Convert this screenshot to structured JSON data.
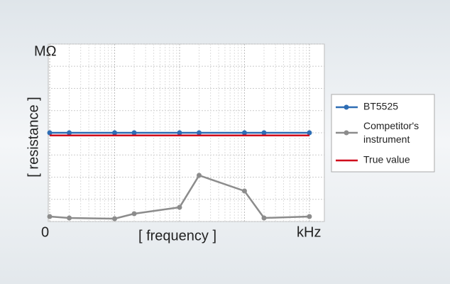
{
  "chart_data": {
    "type": "line",
    "x_label": "[ frequency ]",
    "y_label": "[ resistance ]",
    "y_unit": "MΩ",
    "x_unit": "kHz",
    "origin_label": "0",
    "x": [
      1,
      2,
      10,
      20,
      100,
      200,
      1000,
      2000,
      10000
    ],
    "xlim": [
      0.95,
      17000
    ],
    "xscale": "log",
    "ylim": [
      0,
      100
    ],
    "yticks": [
      0,
      12.5,
      25,
      37.5,
      50,
      62.5,
      75,
      87.5,
      100
    ],
    "grid": true,
    "series": [
      {
        "name": "BT5525",
        "color": "#2e6db4",
        "marker": true,
        "values": [
          50,
          50,
          50,
          50,
          50,
          50,
          50,
          50,
          50
        ]
      },
      {
        "name": "Competitor's instrument",
        "color": "#8c8c8c",
        "marker": true,
        "values": [
          2.8,
          2,
          1.6,
          4.4,
          8,
          26,
          17.2,
          2,
          2.8
        ]
      },
      {
        "name": "True value",
        "color": "#d0021b",
        "marker": false,
        "values": [
          48.5,
          48.5,
          48.5,
          48.5,
          48.5,
          48.5,
          48.5,
          48.5,
          48.5
        ]
      }
    ],
    "legend": "right"
  }
}
